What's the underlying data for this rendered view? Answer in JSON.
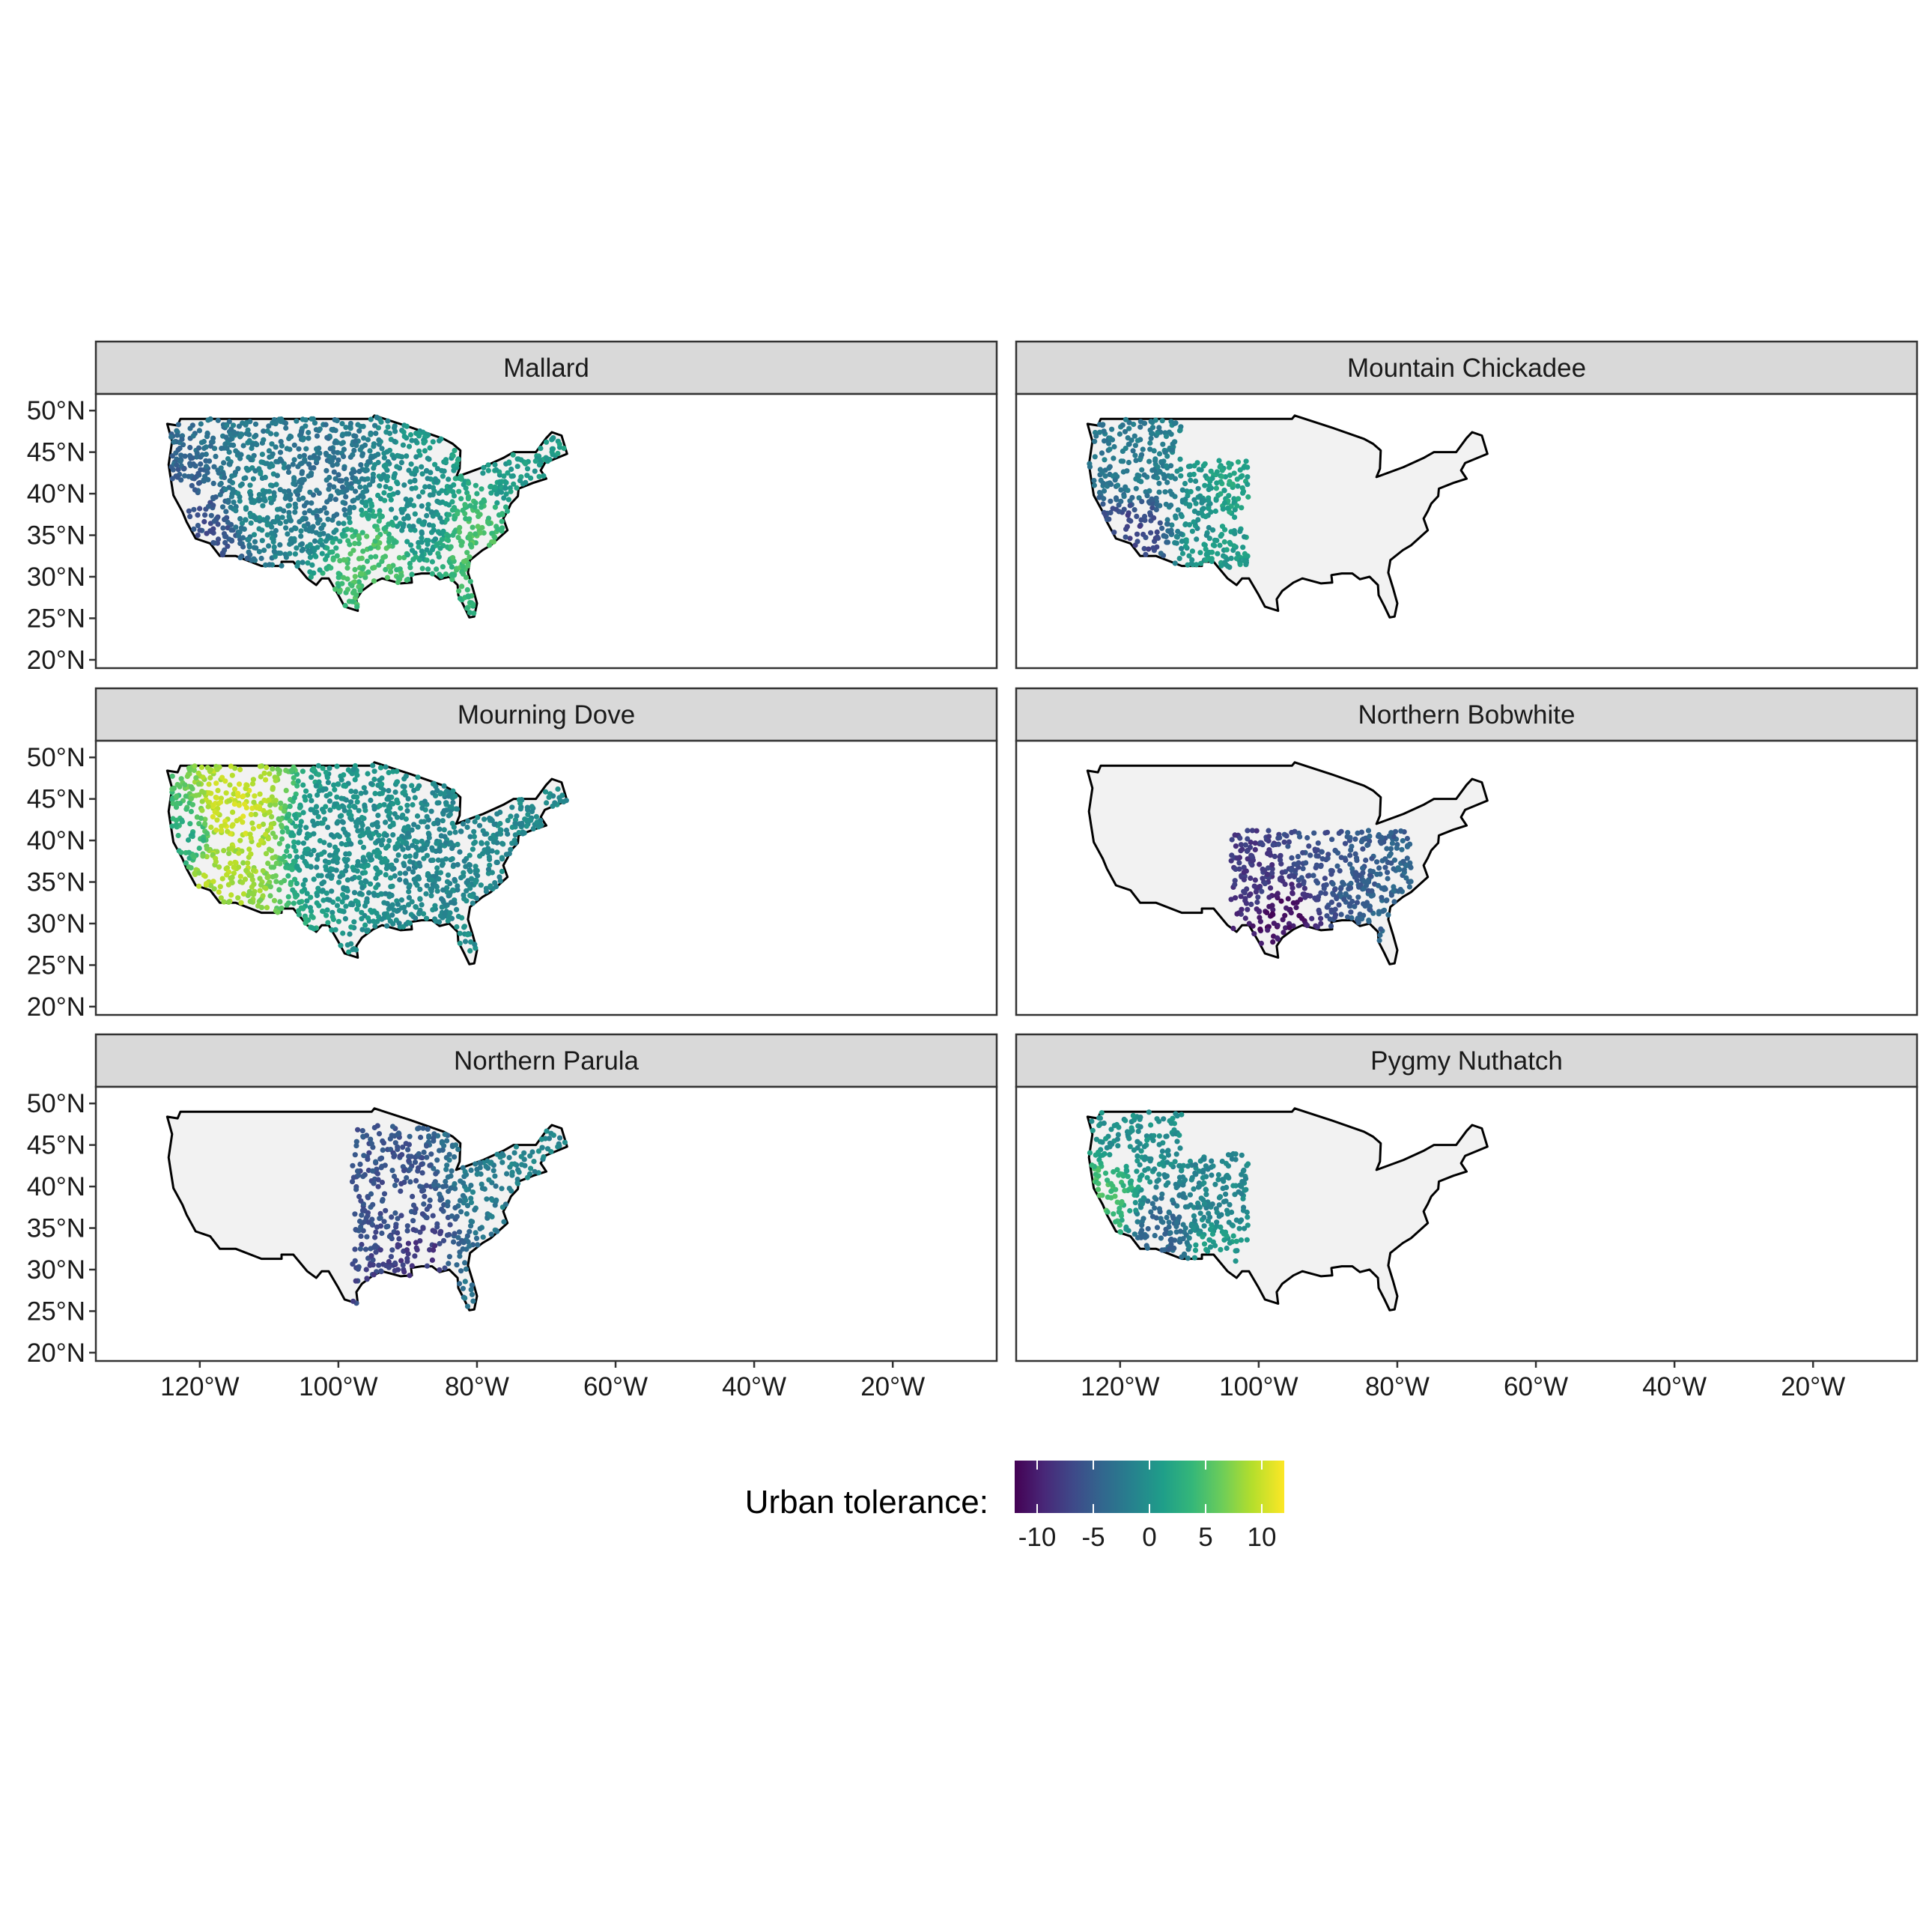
{
  "figure": {
    "panels": [
      {
        "id": "mallard",
        "title": "Mallard"
      },
      {
        "id": "mountain-chickadee",
        "title": "Mountain Chickadee"
      },
      {
        "id": "mourning-dove",
        "title": "Mourning Dove"
      },
      {
        "id": "northern-bobwhite",
        "title": "Northern Bobwhite"
      },
      {
        "id": "northern-parula",
        "title": "Northern Parula"
      },
      {
        "id": "pygmy-nuthatch",
        "title": "Pygmy Nuthatch"
      }
    ],
    "lat_ticks": [
      "50°N",
      "45°N",
      "40°N",
      "35°N",
      "30°N",
      "25°N",
      "20°N"
    ],
    "lon_ticks": [
      "120°W",
      "100°W",
      "80°W",
      "60°W",
      "40°W",
      "20°W"
    ]
  },
  "legend": {
    "title": "Urban tolerance:",
    "ticks": [
      "-10",
      "-5",
      "0",
      "5",
      "10"
    ],
    "tick_values": [
      -10,
      -5,
      0,
      5,
      10
    ],
    "range": [
      -12,
      12
    ],
    "palette": [
      "#440154",
      "#482878",
      "#3E4A89",
      "#31688E",
      "#26828E",
      "#1F9E89",
      "#35B779",
      "#6DCD59",
      "#B4DE2C",
      "#FDE725"
    ]
  },
  "chart_data": {
    "type": "scatter",
    "map_region": "Contiguous United States",
    "x_axis": {
      "label": "",
      "range": [
        -135,
        -5
      ],
      "ticks": [
        -120,
        -100,
        -80,
        -60,
        -40,
        -20
      ]
    },
    "y_axis": {
      "label": "",
      "range": [
        19,
        52
      ],
      "ticks": [
        20,
        25,
        30,
        35,
        40,
        45,
        50
      ]
    },
    "color_variable": "Urban tolerance",
    "color_range": [
      -12,
      12
    ],
    "panels": [
      {
        "title": "Mallard",
        "extent": "nationwide",
        "zones": [
          {
            "lon": -102,
            "lat": 41,
            "value": -3
          },
          {
            "lon": -112,
            "lat": 38,
            "value": -1
          },
          {
            "lon": -118,
            "lat": 35,
            "value": -6
          },
          {
            "lon": -88,
            "lat": 38,
            "value": 0
          },
          {
            "lon": -95,
            "lat": 32,
            "value": 5
          },
          {
            "lon": -80,
            "lat": 35,
            "value": 5
          },
          {
            "lon": -75,
            "lat": 42,
            "value": 1
          }
        ]
      },
      {
        "title": "Mountain Chickadee",
        "extent": "west",
        "zones": [
          {
            "lon": -118,
            "lat": 42,
            "value": -2
          },
          {
            "lon": -118,
            "lat": 36,
            "value": -7
          },
          {
            "lon": -108,
            "lat": 38,
            "value": 0
          },
          {
            "lon": -104,
            "lat": 40,
            "value": 2
          },
          {
            "lon": -106,
            "lat": 32,
            "value": 1
          }
        ]
      },
      {
        "title": "Mourning Dove",
        "extent": "nationwide",
        "zones": [
          {
            "lon": -116,
            "lat": 43,
            "value": 10
          },
          {
            "lon": -118,
            "lat": 36,
            "value": 9
          },
          {
            "lon": -122,
            "lat": 40,
            "value": 3
          },
          {
            "lon": -100,
            "lat": 40,
            "value": 0
          },
          {
            "lon": -85,
            "lat": 35,
            "value": -1
          },
          {
            "lon": -80,
            "lat": 27,
            "value": 0
          }
        ]
      },
      {
        "title": "Northern Bobwhite",
        "extent": "southeast",
        "zones": [
          {
            "lon": -97,
            "lat": 31,
            "value": -11
          },
          {
            "lon": -100,
            "lat": 35,
            "value": -8
          },
          {
            "lon": -92,
            "lat": 38,
            "value": -6
          },
          {
            "lon": -85,
            "lat": 35,
            "value": -5
          },
          {
            "lon": -80,
            "lat": 33,
            "value": -4
          }
        ]
      },
      {
        "title": "Northern Parula",
        "extent": "east",
        "zones": [
          {
            "lon": -92,
            "lat": 38,
            "value": -6
          },
          {
            "lon": -88,
            "lat": 31,
            "value": -8
          },
          {
            "lon": -78,
            "lat": 40,
            "value": -2
          },
          {
            "lon": -72,
            "lat": 43,
            "value": -1
          },
          {
            "lon": -82,
            "lat": 28,
            "value": -3
          }
        ]
      },
      {
        "title": "Pygmy Nuthatch",
        "extent": "west",
        "zones": [
          {
            "lon": -123,
            "lat": 38,
            "value": 5
          },
          {
            "lon": -119,
            "lat": 47,
            "value": 0
          },
          {
            "lon": -114,
            "lat": 34,
            "value": -4
          },
          {
            "lon": -106,
            "lat": 38,
            "value": -1
          },
          {
            "lon": -106,
            "lat": 33,
            "value": 1
          }
        ]
      }
    ]
  }
}
